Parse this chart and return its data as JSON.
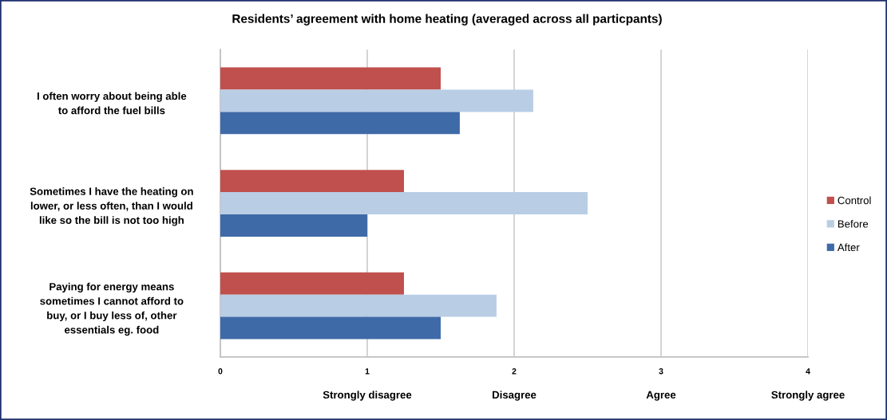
{
  "chart_data": {
    "type": "bar",
    "orientation": "horizontal",
    "title": "Residents’ agreement with home heating (averaged across all particpants)",
    "categories": [
      "I often worry about being able\nto afford the fuel bills",
      "Sometimes I have the heating on\nlower, or less often, than I would\nlike so the bill is not too high",
      "Paying for energy means\nsometimes I cannot afford to\nbuy, or I buy less of, other\nessentials eg. food"
    ],
    "series": [
      {
        "name": "Control",
        "color": "#c0504d",
        "values": [
          1.5,
          1.25,
          1.25
        ]
      },
      {
        "name": "Before",
        "color": "#b9cde5",
        "values": [
          2.13,
          2.5,
          1.88
        ]
      },
      {
        "name": "After",
        "color": "#3f6aa8",
        "values": [
          1.63,
          1.0,
          1.5
        ]
      }
    ],
    "xlim": [
      0,
      4
    ],
    "xticks": [
      0,
      1,
      2,
      3,
      4
    ],
    "annotations": [
      "Strongly disagree",
      "Disagree",
      "Agree",
      "Strongly agree"
    ],
    "grid": "x",
    "legend": "right"
  }
}
